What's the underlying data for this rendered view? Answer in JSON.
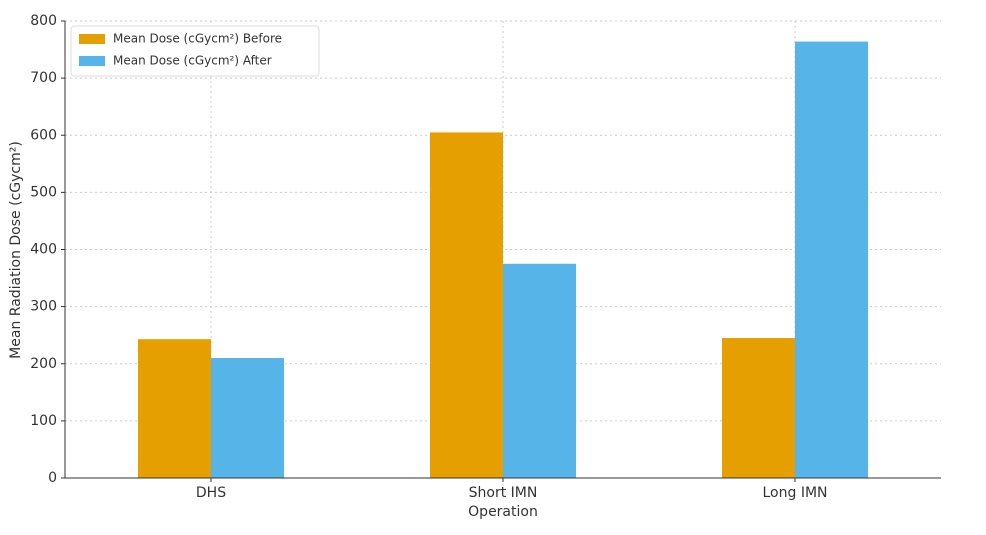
{
  "chart_data": {
    "type": "bar",
    "xlabel": "Operation",
    "ylabel": "Mean Radiation Dose (cGycm²)",
    "categories": [
      "DHS",
      "Short IMN",
      "Long IMN"
    ],
    "series": [
      {
        "name": "Mean Dose (cGycm²) Before",
        "color": "#E69F00",
        "values": [
          243,
          605,
          245
        ]
      },
      {
        "name": "Mean Dose (cGycm²) After",
        "color": "#56B4E9",
        "values": [
          210,
          375,
          764
        ]
      }
    ],
    "ylim": [
      0,
      800
    ],
    "yticks": [
      0,
      100,
      200,
      300,
      400,
      500,
      600,
      700,
      800
    ],
    "grid": true,
    "legend": "upper left"
  }
}
